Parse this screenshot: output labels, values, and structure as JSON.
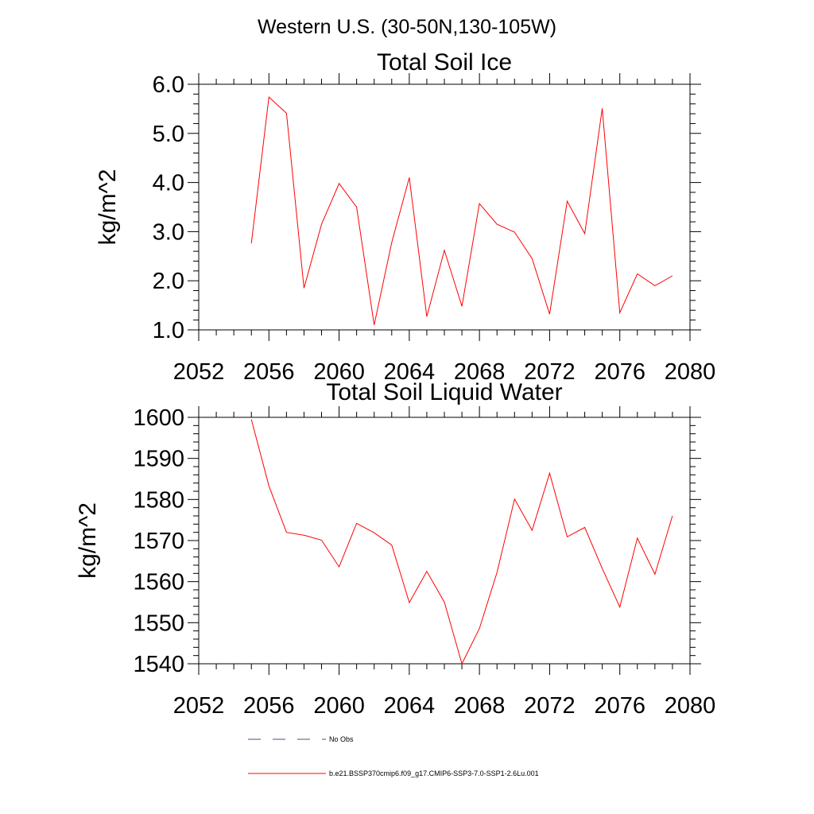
{
  "suptitle": "Western U.S. (30-50N,130-105W)",
  "chart_data": [
    {
      "type": "line",
      "title": "Total Soil Ice",
      "ylabel": "kg/m^2",
      "xlabel": "",
      "xlim": [
        2052,
        2080
      ],
      "ylim": [
        1.0,
        6.0
      ],
      "x_ticks": [
        2052,
        2056,
        2060,
        2064,
        2068,
        2072,
        2076,
        2080
      ],
      "x_tick_labels": [
        "2052",
        "2056",
        "2060",
        "2064",
        "2068",
        "2072",
        "2076",
        "2080"
      ],
      "y_ticks": [
        1.0,
        2.0,
        3.0,
        4.0,
        5.0,
        6.0
      ],
      "y_tick_labels": [
        "1.0",
        "2.0",
        "3.0",
        "4.0",
        "5.0",
        "6.0"
      ],
      "grid": false,
      "series": [
        {
          "name": "b.e21.BSSP370cmip6.f09_g17.CMIP6-SSP3-7.0-SSP1-2.6Lu.001",
          "color": "#ff0000",
          "x": [
            2055,
            2056,
            2057,
            2058,
            2059,
            2060,
            2061,
            2062,
            2063,
            2064,
            2065,
            2066,
            2067,
            2068,
            2069,
            2070,
            2071,
            2072,
            2073,
            2074,
            2075,
            2076,
            2077,
            2078,
            2079
          ],
          "values": [
            2.76,
            5.74,
            5.41,
            1.85,
            3.15,
            3.98,
            3.5,
            1.1,
            2.78,
            4.1,
            1.27,
            2.62,
            1.48,
            3.57,
            3.15,
            2.99,
            2.45,
            1.32,
            3.62,
            2.96,
            5.51,
            1.35,
            2.14,
            1.9,
            2.1
          ]
        }
      ]
    },
    {
      "type": "line",
      "title": "Total Soil Liquid Water",
      "ylabel": "kg/m^2",
      "xlabel": "",
      "xlim": [
        2052,
        2080
      ],
      "ylim": [
        1540,
        1600
      ],
      "x_ticks": [
        2052,
        2056,
        2060,
        2064,
        2068,
        2072,
        2076,
        2080
      ],
      "x_tick_labels": [
        "2052",
        "2056",
        "2060",
        "2064",
        "2068",
        "2072",
        "2076",
        "2080"
      ],
      "y_ticks": [
        1540,
        1550,
        1560,
        1570,
        1580,
        1590,
        1600
      ],
      "y_tick_labels": [
        "1540",
        "1550",
        "1560",
        "1570",
        "1580",
        "1590",
        "1600"
      ],
      "grid": false,
      "series": [
        {
          "name": "b.e21.BSSP370cmip6.f09_g17.CMIP6-SSP3-7.0-SSP1-2.6Lu.001",
          "color": "#ff0000",
          "x": [
            2055,
            2056,
            2057,
            2058,
            2059,
            2060,
            2061,
            2062,
            2063,
            2064,
            2065,
            2066,
            2067,
            2068,
            2069,
            2070,
            2071,
            2072,
            2073,
            2074,
            2075,
            2076,
            2077,
            2078,
            2079
          ],
          "values": [
            1599.5,
            1583.3,
            1572.0,
            1571.3,
            1570.1,
            1563.6,
            1574.2,
            1571.9,
            1568.9,
            1554.9,
            1562.5,
            1555.0,
            1540.0,
            1548.6,
            1562.2,
            1580.1,
            1572.5,
            1586.4,
            1570.9,
            1573.2,
            1563.2,
            1553.8,
            1570.6,
            1561.8,
            1576.0
          ]
        }
      ]
    }
  ],
  "legend": {
    "placement": "bottom-center",
    "items": [
      {
        "label": "No Obs",
        "color": "#4b4b8c",
        "style": "dashed"
      },
      {
        "label": "b.e21.BSSP370cmip6.f09_g17.CMIP6-SSP3-7.0-SSP1-2.6Lu.001",
        "color": "#ff0000",
        "style": "solid"
      }
    ]
  }
}
